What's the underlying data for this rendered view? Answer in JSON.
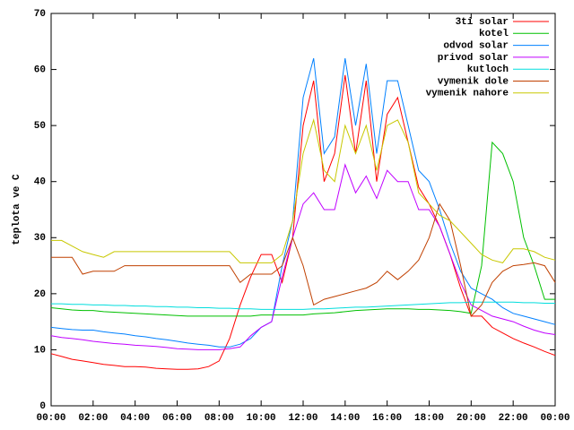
{
  "chart_data": {
    "type": "line",
    "ylabel": "teplota ve C",
    "x": [
      0,
      0.5,
      1,
      1.5,
      2,
      2.5,
      3,
      3.5,
      4,
      4.5,
      5,
      5.5,
      6,
      6.5,
      7,
      7.5,
      8,
      8.5,
      9,
      9.5,
      10,
      10.5,
      11,
      11.5,
      12,
      12.5,
      13,
      13.5,
      14,
      14.5,
      15,
      15.5,
      16,
      16.5,
      17,
      17.5,
      18,
      18.5,
      19,
      19.5,
      20,
      20.5,
      21,
      21.5,
      22,
      22.5,
      23,
      23.5,
      24
    ],
    "xlim": [
      0,
      24
    ],
    "xticks": [
      {
        "value": 0,
        "label": "00:00"
      },
      {
        "value": 2,
        "label": "02:00"
      },
      {
        "value": 4,
        "label": "04:00"
      },
      {
        "value": 6,
        "label": "06:00"
      },
      {
        "value": 8,
        "label": "08:00"
      },
      {
        "value": 10,
        "label": "10:00"
      },
      {
        "value": 12,
        "label": "12:00"
      },
      {
        "value": 14,
        "label": "14:00"
      },
      {
        "value": 16,
        "label": "16:00"
      },
      {
        "value": 18,
        "label": "18:00"
      },
      {
        "value": 20,
        "label": "20:00"
      },
      {
        "value": 22,
        "label": "22:00"
      },
      {
        "value": 24,
        "label": "00:00"
      }
    ],
    "ylim": [
      0,
      70
    ],
    "yticks": [
      0,
      10,
      20,
      30,
      40,
      50,
      60,
      70
    ],
    "grid": false,
    "legend": "top-right",
    "series": [
      {
        "name": "3ti solar",
        "color": "#ff0000",
        "values": [
          9.3,
          8.8,
          8.3,
          8,
          7.7,
          7.4,
          7.2,
          7,
          7,
          6.9,
          6.7,
          6.6,
          6.5,
          6.5,
          6.6,
          7,
          8,
          12,
          18,
          23,
          27,
          27,
          22,
          30,
          50,
          58,
          40,
          45,
          59,
          45,
          58,
          40,
          52,
          55,
          47,
          39,
          36,
          32,
          27,
          21,
          16,
          16,
          14,
          13,
          12,
          11.2,
          10.5,
          9.7,
          9
        ]
      },
      {
        "name": "kotel",
        "color": "#00c000",
        "values": [
          17.5,
          17.3,
          17.1,
          17,
          17,
          16.8,
          16.7,
          16.6,
          16.5,
          16.4,
          16.3,
          16.2,
          16.1,
          16,
          16,
          16,
          16,
          16,
          16,
          16,
          16.2,
          16.2,
          16.2,
          16.2,
          16.2,
          16.4,
          16.5,
          16.6,
          16.8,
          17,
          17.1,
          17.2,
          17.3,
          17.3,
          17.3,
          17.2,
          17.2,
          17.1,
          17,
          16.8,
          16.5,
          25,
          47,
          45,
          40,
          30,
          25,
          19,
          19
        ]
      },
      {
        "name": "odvod solar",
        "color": "#0080ff",
        "values": [
          14,
          13.8,
          13.6,
          13.5,
          13.5,
          13.2,
          13,
          12.8,
          12.5,
          12.3,
          12,
          11.8,
          11.5,
          11.2,
          11,
          10.8,
          10.5,
          10.5,
          11,
          12,
          14,
          15,
          25,
          33,
          55,
          62,
          45,
          48,
          62,
          50,
          61,
          45,
          58,
          58,
          50,
          42,
          40,
          35,
          29,
          24,
          21,
          20,
          19,
          17.5,
          16.5,
          16,
          15.5,
          15,
          14.5
        ]
      },
      {
        "name": "privod solar",
        "color": "#c000ff",
        "values": [
          12.5,
          12.2,
          12,
          11.8,
          11.5,
          11.3,
          11.1,
          11,
          10.8,
          10.7,
          10.6,
          10.4,
          10.2,
          10.1,
          10,
          10,
          10,
          10.2,
          10.5,
          12.5,
          14,
          15,
          23,
          30,
          36,
          38,
          35,
          35,
          43,
          38,
          41,
          37,
          42,
          40,
          40,
          35,
          35,
          32,
          27,
          22,
          18,
          17,
          16,
          15.5,
          15,
          14.2,
          13.5,
          13,
          12.7
        ]
      },
      {
        "name": "kutloch",
        "color": "#00dddd",
        "values": [
          18.2,
          18.2,
          18.1,
          18.1,
          18,
          18,
          17.9,
          17.9,
          17.8,
          17.8,
          17.7,
          17.7,
          17.6,
          17.6,
          17.5,
          17.5,
          17.4,
          17.4,
          17.3,
          17.3,
          17.2,
          17.2,
          17.2,
          17.2,
          17.2,
          17.3,
          17.3,
          17.4,
          17.5,
          17.6,
          17.6,
          17.7,
          17.8,
          17.9,
          18,
          18.1,
          18.2,
          18.3,
          18.4,
          18.4,
          18.5,
          18.5,
          18.5,
          18.5,
          18.5,
          18.4,
          18.4,
          18.3,
          18.3
        ]
      },
      {
        "name": "vymenik dole",
        "color": "#c04000",
        "values": [
          26.5,
          26.5,
          26.5,
          23.5,
          24,
          24,
          24,
          25,
          25,
          25,
          25,
          25,
          25,
          25,
          25,
          25,
          25,
          25,
          22,
          23.5,
          23.5,
          23.5,
          25,
          30,
          25,
          18,
          19,
          19.5,
          20,
          20.5,
          21,
          22,
          24,
          22.5,
          24,
          26,
          30,
          36,
          33,
          25,
          16,
          18,
          22,
          24,
          25,
          25.2,
          25.5,
          25,
          22
        ]
      },
      {
        "name": "vymenik nahore",
        "color": "#c8c800",
        "values": [
          29.5,
          29.5,
          28.5,
          27.5,
          27,
          26.5,
          27.5,
          27.5,
          27.5,
          27.5,
          27.5,
          27.5,
          27.5,
          27.5,
          27.5,
          27.5,
          27.5,
          27.5,
          25.5,
          25.5,
          25.5,
          25.5,
          27,
          33,
          45,
          51,
          42,
          40,
          50,
          45,
          50,
          42,
          50,
          51,
          47,
          38,
          36,
          34,
          33,
          31,
          29,
          27,
          26,
          25.5,
          28,
          28,
          27.5,
          26.5,
          26
        ]
      }
    ]
  }
}
